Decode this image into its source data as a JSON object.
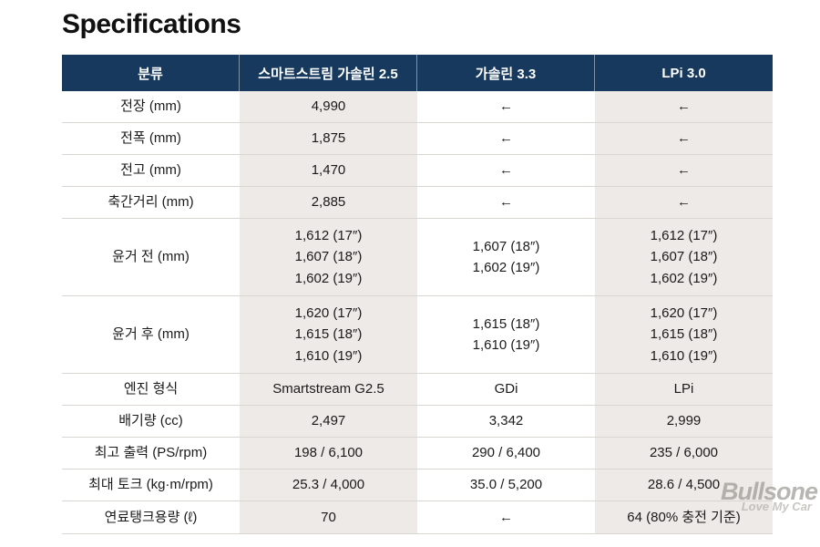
{
  "page": {
    "title": "Specifications"
  },
  "colors": {
    "header_bg": "#17395e",
    "header_text": "#ffffff",
    "shade_col_bg": "#edeae7",
    "row_border": "#d9d6d2",
    "text": "#1a1a1a"
  },
  "table": {
    "columns": [
      "분류",
      "스마트스트림 가솔린 2.5",
      "가솔린 3.3",
      "LPi 3.0"
    ],
    "rows": [
      {
        "label": "전장 (mm)",
        "values": [
          [
            "4,990"
          ],
          [
            "←"
          ],
          [
            "←"
          ]
        ]
      },
      {
        "label": "전폭 (mm)",
        "values": [
          [
            "1,875"
          ],
          [
            "←"
          ],
          [
            "←"
          ]
        ]
      },
      {
        "label": "전고 (mm)",
        "values": [
          [
            "1,470"
          ],
          [
            "←"
          ],
          [
            "←"
          ]
        ]
      },
      {
        "label": "축간거리 (mm)",
        "values": [
          [
            "2,885"
          ],
          [
            "←"
          ],
          [
            "←"
          ]
        ]
      },
      {
        "label": "윤거 전 (mm)",
        "values": [
          [
            "1,612 (17″)",
            "1,607 (18″)",
            "1,602 (19″)"
          ],
          [
            "1,607 (18″)",
            "1,602 (19″)"
          ],
          [
            "1,612 (17″)",
            "1,607 (18″)",
            "1,602 (19″)"
          ]
        ]
      },
      {
        "label": "윤거 후 (mm)",
        "values": [
          [
            "1,620 (17″)",
            "1,615 (18″)",
            "1,610 (19″)"
          ],
          [
            "1,615 (18″)",
            "1,610 (19″)"
          ],
          [
            "1,620 (17″)",
            "1,615 (18″)",
            "1,610 (19″)"
          ]
        ]
      },
      {
        "label": "엔진 형식",
        "values": [
          [
            "Smartstream G2.5"
          ],
          [
            "GDi"
          ],
          [
            "LPi"
          ]
        ]
      },
      {
        "label": "배기량 (cc)",
        "values": [
          [
            "2,497"
          ],
          [
            "3,342"
          ],
          [
            "2,999"
          ]
        ]
      },
      {
        "label": "최고 출력 (PS/rpm)",
        "values": [
          [
            "198 / 6,100"
          ],
          [
            "290 / 6,400"
          ],
          [
            "235 / 6,000"
          ]
        ]
      },
      {
        "label": "최대 토크 (kg·m/rpm)",
        "values": [
          [
            "25.3 / 4,000"
          ],
          [
            "35.0 / 5,200"
          ],
          [
            "28.6 / 4,500"
          ]
        ]
      },
      {
        "label": "연료탱크용량 (ℓ)",
        "values": [
          [
            "70"
          ],
          [
            "←"
          ],
          [
            "64 (80% 충전 기준)"
          ]
        ]
      }
    ]
  },
  "watermark": {
    "brand": "Bullsone",
    "tagline": "Love My Car"
  }
}
